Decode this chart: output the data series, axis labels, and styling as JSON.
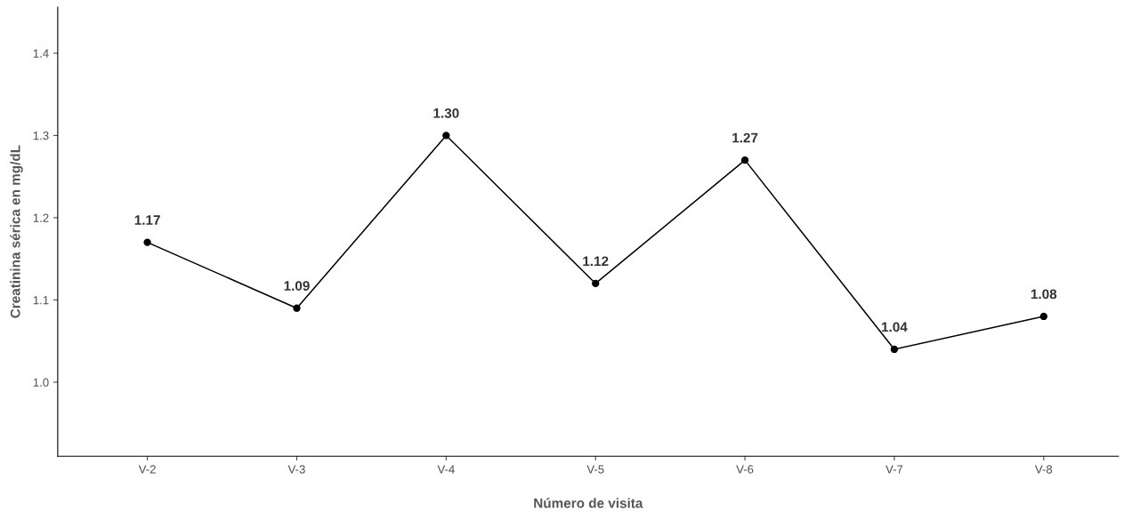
{
  "chart_data": {
    "type": "line",
    "xlabel": "Número de visita",
    "ylabel": "Creatinina sérica en mg/dL",
    "categories": [
      "V-2",
      "V-3",
      "V-4",
      "V-5",
      "V-6",
      "V-7",
      "V-8"
    ],
    "series": [
      {
        "color": "#000000",
        "values": [
          1.17,
          1.09,
          1.3,
          1.12,
          1.27,
          1.04,
          1.08
        ],
        "value_labels": [
          "1.17",
          "1.09",
          "1.30",
          "1.12",
          "1.27",
          "1.04",
          "1.08"
        ]
      }
    ],
    "ylim": [
      0.91,
      1.456
    ],
    "yticks": [
      {
        "value": 1.0,
        "label": "1.0"
      },
      {
        "value": 1.1,
        "label": "1.1"
      },
      {
        "value": 1.2,
        "label": "1.2"
      },
      {
        "value": 1.3,
        "label": "1.3"
      },
      {
        "value": 1.4,
        "label": "1.4"
      }
    ],
    "grid": false,
    "legend": false,
    "marker": "circle",
    "line_style": "solid"
  }
}
